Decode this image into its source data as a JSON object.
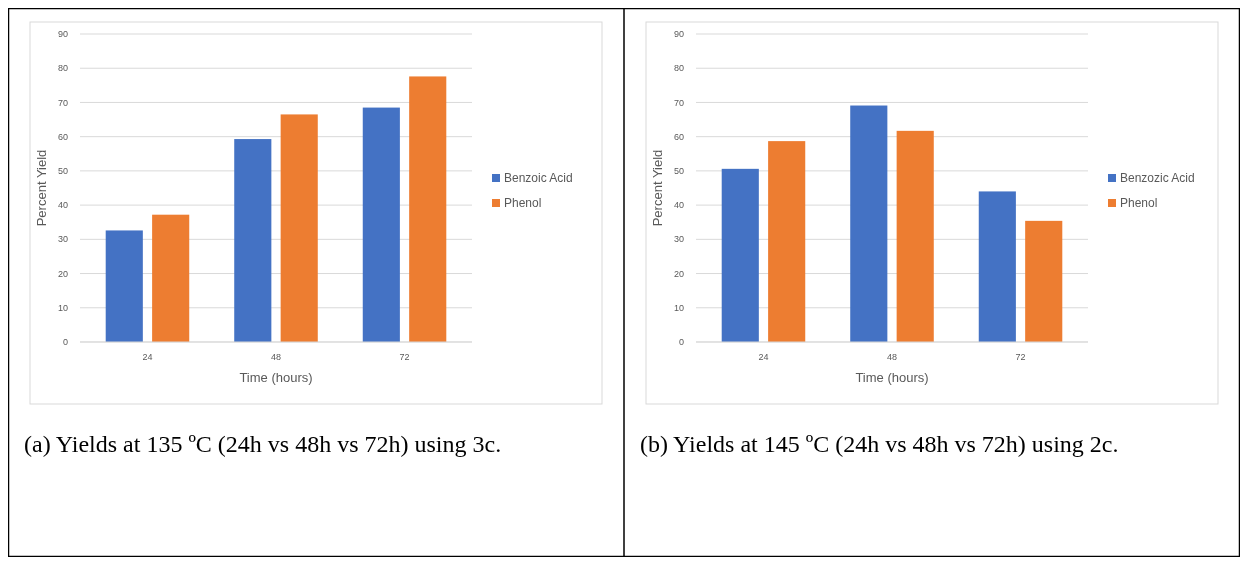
{
  "chart_data": [
    {
      "type": "bar",
      "xlabel": "Time (hours)",
      "ylabel": "Percent Yield",
      "categories": [
        "24",
        "48",
        "72"
      ],
      "series": [
        {
          "name": "Benzoic Acid",
          "color": "#4472c4",
          "values": [
            32.6,
            59.3,
            68.5
          ]
        },
        {
          "name": "Phenol",
          "color": "#ed7d31",
          "values": [
            37.2,
            66.5,
            77.6
          ]
        }
      ],
      "ylim": [
        0,
        90
      ],
      "yticks": [
        0,
        10,
        20,
        30,
        40,
        50,
        60,
        70,
        80,
        90
      ],
      "grid": "y",
      "legend": "right",
      "annotations": [
        "(a) Yields at 135 ºC (24h vs 48h vs 72h) using 3c."
      ]
    },
    {
      "type": "bar",
      "xlabel": "Time (hours)",
      "ylabel": "Percent Yield",
      "categories": [
        "24",
        "48",
        "72"
      ],
      "series": [
        {
          "name": "Benzozic Acid",
          "color": "#4472c4",
          "values": [
            50.6,
            69.1,
            44.0
          ]
        },
        {
          "name": "Phenol",
          "color": "#ed7d31",
          "values": [
            58.7,
            61.7,
            35.4
          ]
        }
      ],
      "ylim": [
        0,
        90
      ],
      "yticks": [
        0,
        10,
        20,
        30,
        40,
        50,
        60,
        70,
        80,
        90
      ],
      "grid": "y",
      "legend": "right",
      "annotations": [
        "(b) Yields at 145 ºC (24h vs 48h vs 72h) using 2c."
      ]
    }
  ]
}
